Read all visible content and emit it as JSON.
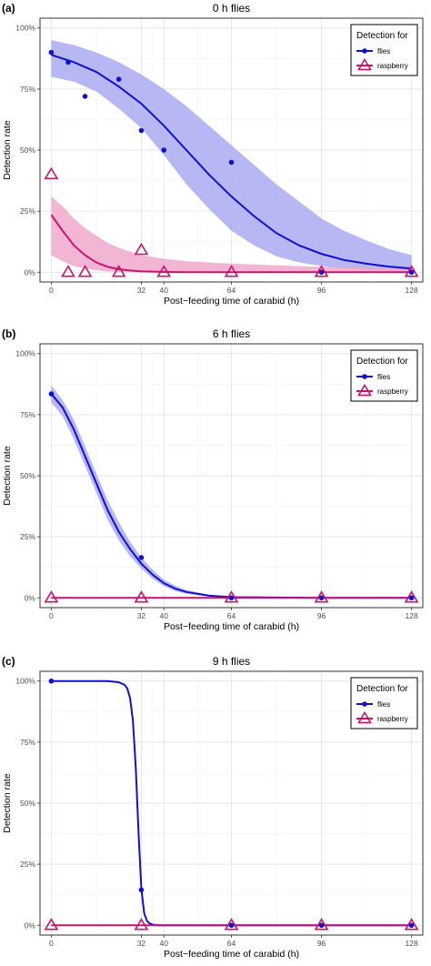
{
  "colors": {
    "flies": "#1010d0",
    "flies_band": "#aaaaf2",
    "raspberry": "#c8146e",
    "raspberry_band": "#f0a8cc",
    "grid_major": "#e6e6e6",
    "grid_minor": "#f2f2f2"
  },
  "chart_data": [
    {
      "type": "scatter",
      "panel_label": "(a)",
      "title": "0 h flies",
      "xlabel": "Post−feeding time of carabid (h)",
      "ylabel": "Detection rate",
      "x_ticks": [
        0,
        32,
        40,
        64,
        96,
        128
      ],
      "x_tick_labels": [
        "0",
        "32",
        "40",
        "64",
        "96",
        "128"
      ],
      "y_ticks": [
        0,
        0.25,
        0.5,
        0.75,
        1
      ],
      "y_tick_labels": [
        "0%",
        "25%",
        "50%",
        "75%",
        "100%"
      ],
      "xlim": [
        -4,
        132
      ],
      "ylim": [
        -0.04,
        1.04
      ],
      "grid": true,
      "legend": {
        "title": "Detection for",
        "position": "top-right",
        "entries": [
          "flies",
          "raspberry"
        ]
      },
      "series": [
        {
          "name": "flies",
          "marker": "dot",
          "points": [
            [
              0,
              0.9
            ],
            [
              6,
              0.86
            ],
            [
              12,
              0.72
            ],
            [
              24,
              0.79
            ],
            [
              32,
              0.58
            ],
            [
              40,
              0.5
            ],
            [
              64,
              0.45
            ],
            [
              96,
              0.0
            ],
            [
              128,
              0.0
            ]
          ],
          "fit": {
            "x": [
              0,
              8,
              16,
              24,
              32,
              40,
              48,
              56,
              64,
              72,
              80,
              88,
              96,
              104,
              112,
              120,
              128
            ],
            "y": [
              0.89,
              0.86,
              0.82,
              0.76,
              0.69,
              0.6,
              0.5,
              0.4,
              0.31,
              0.23,
              0.16,
              0.11,
              0.075,
              0.05,
              0.035,
              0.023,
              0.015
            ]
          },
          "band_upper": [
            0.95,
            0.93,
            0.9,
            0.86,
            0.81,
            0.75,
            0.68,
            0.6,
            0.52,
            0.44,
            0.36,
            0.29,
            0.22,
            0.17,
            0.13,
            0.095,
            0.07
          ],
          "band_lower": [
            0.8,
            0.78,
            0.74,
            0.67,
            0.59,
            0.48,
            0.36,
            0.26,
            0.17,
            0.11,
            0.065,
            0.04,
            0.025,
            0.015,
            0.01,
            0.005,
            0.003
          ]
        },
        {
          "name": "raspberry",
          "marker": "triangle",
          "points": [
            [
              0,
              0.4
            ],
            [
              6,
              0.0
            ],
            [
              12,
              0.0
            ],
            [
              24,
              0.0
            ],
            [
              32,
              0.09
            ],
            [
              40,
              0.0
            ],
            [
              64,
              0.0
            ],
            [
              96,
              0.0
            ],
            [
              128,
              0.0
            ]
          ],
          "fit": {
            "x": [
              0,
              4,
              8,
              12,
              16,
              20,
              24,
              28,
              32,
              40,
              48,
              64,
              96,
              128
            ],
            "y": [
              0.235,
              0.17,
              0.11,
              0.07,
              0.04,
              0.022,
              0.012,
              0.007,
              0.004,
              0.001,
              0.0,
              0.0,
              0.0,
              0.0
            ]
          },
          "band_upper": [
            0.31,
            0.27,
            0.22,
            0.18,
            0.15,
            0.12,
            0.1,
            0.085,
            0.07,
            0.055,
            0.045,
            0.035,
            0.022,
            0.015
          ],
          "band_lower": [
            0.07,
            0.045,
            0.025,
            0.015,
            0.008,
            0.004,
            0.002,
            0.001,
            0.0,
            0.0,
            0.0,
            0.0,
            0.0,
            0.0
          ]
        }
      ]
    },
    {
      "type": "scatter",
      "panel_label": "(b)",
      "title": "6 h flies",
      "xlabel": "Post−feeding time of carabid (h)",
      "ylabel": "Detection rate",
      "x_ticks": [
        0,
        32,
        40,
        64,
        96,
        128
      ],
      "x_tick_labels": [
        "0",
        "32",
        "40",
        "64",
        "96",
        "128"
      ],
      "y_ticks": [
        0,
        0.25,
        0.5,
        0.75,
        1
      ],
      "y_tick_labels": [
        "0%",
        "25%",
        "50%",
        "75%",
        "100%"
      ],
      "xlim": [
        -4,
        132
      ],
      "ylim": [
        -0.04,
        1.04
      ],
      "grid": true,
      "legend": {
        "title": "Detection for",
        "position": "top-right",
        "entries": [
          "flies",
          "raspberry"
        ]
      },
      "series": [
        {
          "name": "flies",
          "marker": "dot",
          "points": [
            [
              0,
              0.835
            ],
            [
              32,
              0.165
            ],
            [
              64,
              0.0
            ],
            [
              96,
              0.0
            ],
            [
              128,
              0.0
            ]
          ],
          "fit": {
            "x": [
              0,
              4,
              8,
              12,
              16,
              20,
              24,
              28,
              32,
              36,
              40,
              44,
              48,
              56,
              64,
              96,
              128
            ],
            "y": [
              0.835,
              0.78,
              0.69,
              0.58,
              0.47,
              0.36,
              0.27,
              0.2,
              0.14,
              0.095,
              0.06,
              0.038,
              0.024,
              0.009,
              0.003,
              0.0,
              0.0
            ]
          },
          "band_upper": [
            0.87,
            0.81,
            0.73,
            0.62,
            0.51,
            0.4,
            0.31,
            0.23,
            0.165,
            0.115,
            0.075,
            0.05,
            0.032,
            0.013,
            0.005,
            0.001,
            0.0
          ],
          "band_lower": [
            0.8,
            0.745,
            0.65,
            0.54,
            0.43,
            0.32,
            0.235,
            0.17,
            0.12,
            0.078,
            0.048,
            0.028,
            0.017,
            0.006,
            0.002,
            0.0,
            0.0
          ]
        },
        {
          "name": "raspberry",
          "marker": "triangle",
          "points": [
            [
              0,
              0.0
            ],
            [
              32,
              0.0
            ],
            [
              64,
              0.0
            ],
            [
              96,
              0.0
            ],
            [
              128,
              0.0
            ]
          ],
          "fit": {
            "x": [
              0,
              128
            ],
            "y": [
              0.0,
              0.0
            ]
          },
          "band_upper": [
            0.0,
            0.0
          ],
          "band_lower": [
            0.0,
            0.0
          ]
        }
      ]
    },
    {
      "type": "scatter",
      "panel_label": "(c)",
      "title": "9 h flies",
      "xlabel": "Post−feeding time of carabid (h)",
      "ylabel": "Detection rate",
      "x_ticks": [
        0,
        32,
        40,
        64,
        96,
        128
      ],
      "x_tick_labels": [
        "0",
        "32",
        "40",
        "64",
        "96",
        "128"
      ],
      "y_ticks": [
        0,
        0.25,
        0.5,
        0.75,
        1
      ],
      "y_tick_labels": [
        "0%",
        "25%",
        "50%",
        "75%",
        "100%"
      ],
      "xlim": [
        -4,
        132
      ],
      "ylim": [
        -0.04,
        1.04
      ],
      "grid": true,
      "legend": {
        "title": "Detection for",
        "position": "top-right",
        "entries": [
          "flies",
          "raspberry"
        ]
      },
      "series": [
        {
          "name": "flies",
          "marker": "dot",
          "points": [
            [
              0,
              1.0
            ],
            [
              32,
              0.145
            ],
            [
              64,
              0.0
            ],
            [
              96,
              0.0
            ],
            [
              128,
              0.0
            ]
          ],
          "fit": {
            "x": [
              0,
              20,
              24,
              26,
              27,
              28,
              29,
              30,
              31,
              32,
              33,
              34,
              35,
              36,
              38,
              40,
              64,
              96,
              128
            ],
            "y": [
              1.0,
              1.0,
              0.995,
              0.985,
              0.97,
              0.93,
              0.84,
              0.65,
              0.38,
              0.15,
              0.05,
              0.018,
              0.007,
              0.003,
              0.0,
              0.0,
              0.0,
              0.0,
              0.0
            ]
          },
          "band_upper": [],
          "band_lower": []
        },
        {
          "name": "raspberry",
          "marker": "triangle",
          "points": [
            [
              0,
              0.0
            ],
            [
              32,
              0.0
            ],
            [
              64,
              0.0
            ],
            [
              96,
              0.0
            ],
            [
              128,
              0.0
            ]
          ],
          "fit": {
            "x": [
              0,
              128
            ],
            "y": [
              0.0,
              0.0
            ]
          },
          "band_upper": [],
          "band_lower": []
        }
      ]
    }
  ]
}
